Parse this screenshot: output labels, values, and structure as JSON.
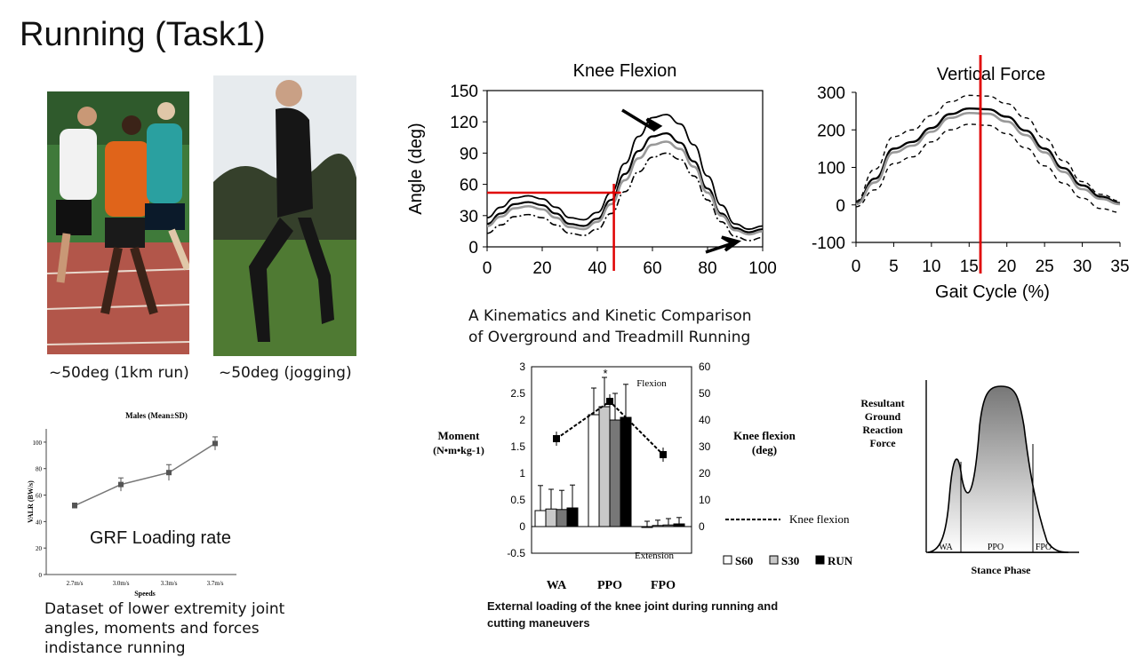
{
  "slide": {
    "title": "Running (Task1)",
    "photo1_caption": "~50deg (1km run)",
    "photo2_caption": "~50deg (jogging)",
    "grf_label": "GRF Loading rate",
    "dataset_caption": "Dataset of lower extremity joint angles, moments and forces indistance running",
    "kin_caption": "A Kinematics and Kinetic Comparison of Overground and Treadmill Running",
    "knee_loading_caption": "External loading of the knee joint during running and cutting maneuvers"
  },
  "colors": {
    "accent_red": "#e00000",
    "photo1_track": "#b2564a",
    "photo2_grass": "#4f7a33"
  },
  "chart_data": [
    {
      "id": "knee-flexion",
      "type": "line",
      "title": "Knee Flexion",
      "ylabel": "Angle (deg)",
      "xlim": [
        0,
        100
      ],
      "ylim": [
        0,
        150
      ],
      "xticks": [
        0,
        20,
        40,
        60,
        80,
        100
      ],
      "yticks": [
        0,
        30,
        60,
        90,
        120,
        150
      ],
      "x": [
        0,
        5,
        10,
        15,
        20,
        25,
        30,
        35,
        40,
        45,
        50,
        55,
        60,
        65,
        70,
        75,
        80,
        85,
        90,
        95,
        100
      ],
      "series": [
        {
          "values": [
            28,
            38,
            47,
            49,
            46,
            38,
            28,
            26,
            33,
            52,
            80,
            106,
            124,
            127,
            118,
            98,
            68,
            40,
            22,
            17,
            20
          ]
        },
        {
          "values": [
            22,
            32,
            41,
            43,
            40,
            32,
            22,
            20,
            27,
            45,
            70,
            92,
            106,
            109,
            100,
            82,
            56,
            32,
            18,
            14,
            17
          ]
        },
        {
          "values": [
            20,
            29,
            37,
            39,
            36,
            28,
            19,
            17,
            24,
            41,
            64,
            85,
            98,
            101,
            94,
            77,
            52,
            30,
            16,
            12,
            15
          ]
        },
        {
          "values": [
            13,
            21,
            29,
            31,
            28,
            21,
            13,
            11,
            17,
            32,
            53,
            72,
            86,
            90,
            84,
            68,
            45,
            24,
            10,
            6,
            9
          ]
        }
      ],
      "reference_lines": {
        "y": 52,
        "x": 46
      }
    },
    {
      "id": "vertical-force",
      "type": "line",
      "title": "Vertical Force",
      "xlabel": "Gait Cycle (%)",
      "xlim": [
        0,
        35
      ],
      "ylim": [
        -100,
        300
      ],
      "xticks": [
        0,
        5,
        10,
        15,
        20,
        25,
        30,
        35
      ],
      "yticks": [
        -100,
        0,
        100,
        200,
        300
      ],
      "x": [
        0,
        2.5,
        5,
        7.5,
        10,
        12.5,
        15,
        17.5,
        20,
        22.5,
        25,
        27.5,
        30,
        32.5,
        35
      ],
      "series": [
        {
          "values": [
            10,
            95,
            182,
            200,
            238,
            275,
            292,
            290,
            270,
            232,
            178,
            118,
            62,
            28,
            10
          ]
        },
        {
          "values": [
            5,
            70,
            150,
            168,
            205,
            242,
            257,
            255,
            235,
            198,
            150,
            98,
            52,
            22,
            5
          ]
        },
        {
          "values": [
            2,
            60,
            140,
            158,
            195,
            232,
            245,
            243,
            222,
            186,
            140,
            88,
            42,
            16,
            2
          ]
        },
        {
          "values": [
            -5,
            40,
            110,
            128,
            168,
            200,
            215,
            212,
            190,
            152,
            104,
            58,
            18,
            -10,
            -20
          ]
        }
      ],
      "reference_lines": {
        "x": 16.5
      }
    },
    {
      "id": "valr",
      "type": "line",
      "title": "Males (Mean±SD)",
      "xlabel": "Speeds",
      "ylabel": "VALR (BW/s)",
      "categories": [
        "2.7m/s",
        "3.0m/s",
        "3.3m/s",
        "3.7m/s"
      ],
      "values": [
        52,
        68,
        77,
        99
      ],
      "errors": [
        2,
        5,
        6,
        5
      ],
      "ylim": [
        0,
        110
      ],
      "yticks": [
        0,
        20,
        40,
        60,
        80,
        100
      ]
    },
    {
      "id": "knee-moment",
      "type": "bar",
      "ylabel": "Moment (N•m•kg-1)",
      "y2label": "Knee flexion (deg)",
      "categories": [
        "WA",
        "PPO",
        "FPO"
      ],
      "series": [
        {
          "name": "S60",
          "values": [
            0.3,
            2.1,
            0.0
          ],
          "errors": [
            0.47,
            0.5,
            0.1
          ]
        },
        {
          "name": "S30",
          "values": [
            0.33,
            2.25,
            0.02
          ],
          "errors": [
            0.37,
            0.55,
            0.1
          ]
        },
        {
          "name": "RUN",
          "values": [
            0.32,
            2.0,
            0.03
          ],
          "errors": [
            0.36,
            0.5,
            0.12
          ]
        },
        {
          "name": "",
          "values": [
            0.35,
            2.05,
            0.05
          ],
          "errors": [
            0.43,
            0.62,
            0.12
          ]
        }
      ],
      "knee_flexion": [
        33,
        47,
        27
      ],
      "ylim": [
        -0.5,
        3
      ],
      "yticks": [
        "-0.5",
        "0",
        "0.5",
        "1",
        "1.5",
        "2",
        "2.5",
        "3"
      ],
      "y2lim": [
        0,
        60
      ],
      "y2ticks": [
        "0",
        "10",
        "20",
        "30",
        "40",
        "50",
        "60"
      ],
      "annotations": {
        "flexion": "Flexion",
        "extension": "Extension",
        "star": "*"
      },
      "legend": {
        "line_label": "Knee flexion",
        "s60": "S60",
        "s30": "S30",
        "run": "RUN"
      }
    },
    {
      "id": "grf-curve",
      "type": "area",
      "ylabel": "Resultant Ground Reaction Force",
      "xlabel": "Stance Phase",
      "regions": [
        "WA",
        "PPO",
        "FPO"
      ]
    }
  ]
}
